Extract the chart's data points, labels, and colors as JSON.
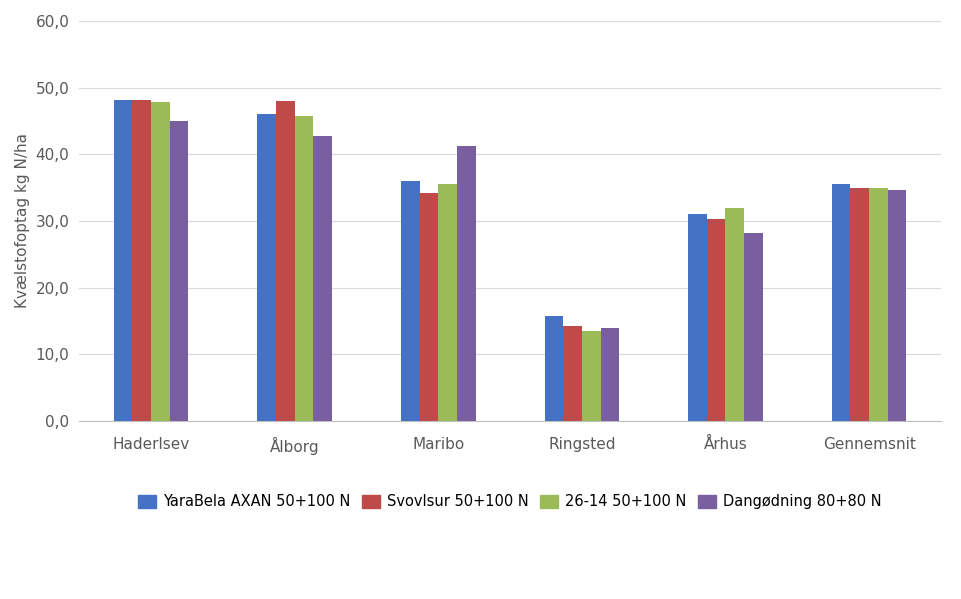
{
  "categories": [
    "Haderlsev",
    "Ålborg",
    "Maribo",
    "Ringsted",
    "Århus",
    "Gennemsnit"
  ],
  "series": [
    {
      "label": "YaraBela AXAN 50+100 N",
      "color": "#4472C4",
      "values": [
        48.2,
        46.0,
        36.0,
        15.8,
        31.0,
        35.5
      ]
    },
    {
      "label": "Svovlsur 50+100 N",
      "color": "#BE4B48",
      "values": [
        48.1,
        48.0,
        34.2,
        14.3,
        30.3,
        35.0
      ]
    },
    {
      "label": "26-14 50+100 N",
      "color": "#9BBB59",
      "values": [
        47.8,
        45.7,
        35.5,
        13.5,
        32.0,
        35.0
      ]
    },
    {
      "label": "Dangødning 80+80 N",
      "color": "#7A5FA0",
      "values": [
        45.0,
        42.8,
        41.3,
        14.0,
        28.2,
        34.7
      ]
    }
  ],
  "ylabel": "Kvælstofoptag kg N/ha",
  "ylim": [
    0,
    60
  ],
  "yticks": [
    0.0,
    10.0,
    20.0,
    30.0,
    40.0,
    50.0,
    60.0
  ],
  "ytick_labels": [
    "0,0",
    "10,0",
    "20,0",
    "30,0",
    "40,0",
    "50,0",
    "60,0"
  ],
  "background_color": "#FFFFFF",
  "plot_background_color": "#FFFFFF",
  "grid_color": "#D9D9D9",
  "bar_width": 0.13,
  "label_fontsize": 11,
  "tick_fontsize": 11,
  "legend_fontsize": 10.5
}
